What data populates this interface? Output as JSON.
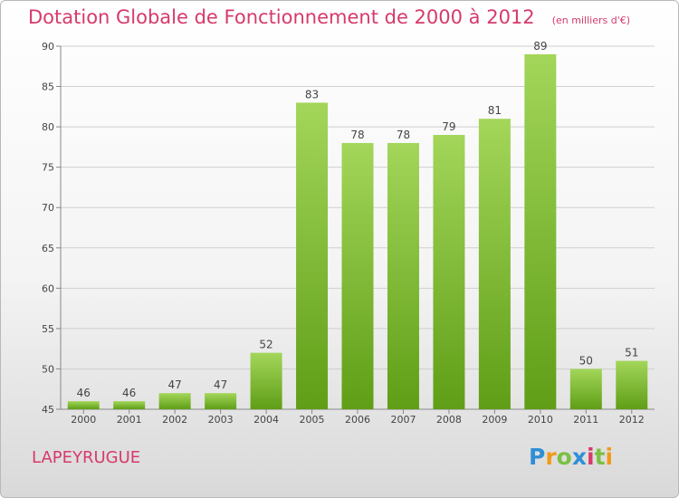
{
  "chart_data": {
    "type": "bar",
    "title": "Dotation Globale de Fonctionnement de 2000 à 2012",
    "unit": "(en milliers d'€)",
    "categories": [
      "2000",
      "2001",
      "2002",
      "2003",
      "2004",
      "2005",
      "2006",
      "2007",
      "2008",
      "2009",
      "2010",
      "2011",
      "2012"
    ],
    "values": [
      46,
      46,
      47,
      47,
      52,
      83,
      78,
      78,
      79,
      81,
      89,
      50,
      51
    ],
    "ylim": [
      45,
      90
    ],
    "yticks": [
      45,
      50,
      55,
      60,
      65,
      70,
      75,
      80,
      85,
      90
    ],
    "grid": true,
    "xlabel": "",
    "ylabel": ""
  },
  "place_name": "LAPEYRUGUE",
  "logo": {
    "letters": [
      "P",
      "r",
      "o",
      "x",
      "i",
      "t",
      "i"
    ],
    "colors": [
      "#2e8fd6",
      "#f09a1a",
      "#7bc043",
      "#2e8fd6",
      "#d63a6b",
      "#7bc043",
      "#f09a1a"
    ]
  },
  "colors": {
    "bar_light": "#9fd155",
    "bar_dark": "#5f9e16",
    "title": "#d63a6b",
    "grid": "#cfcfcf"
  }
}
